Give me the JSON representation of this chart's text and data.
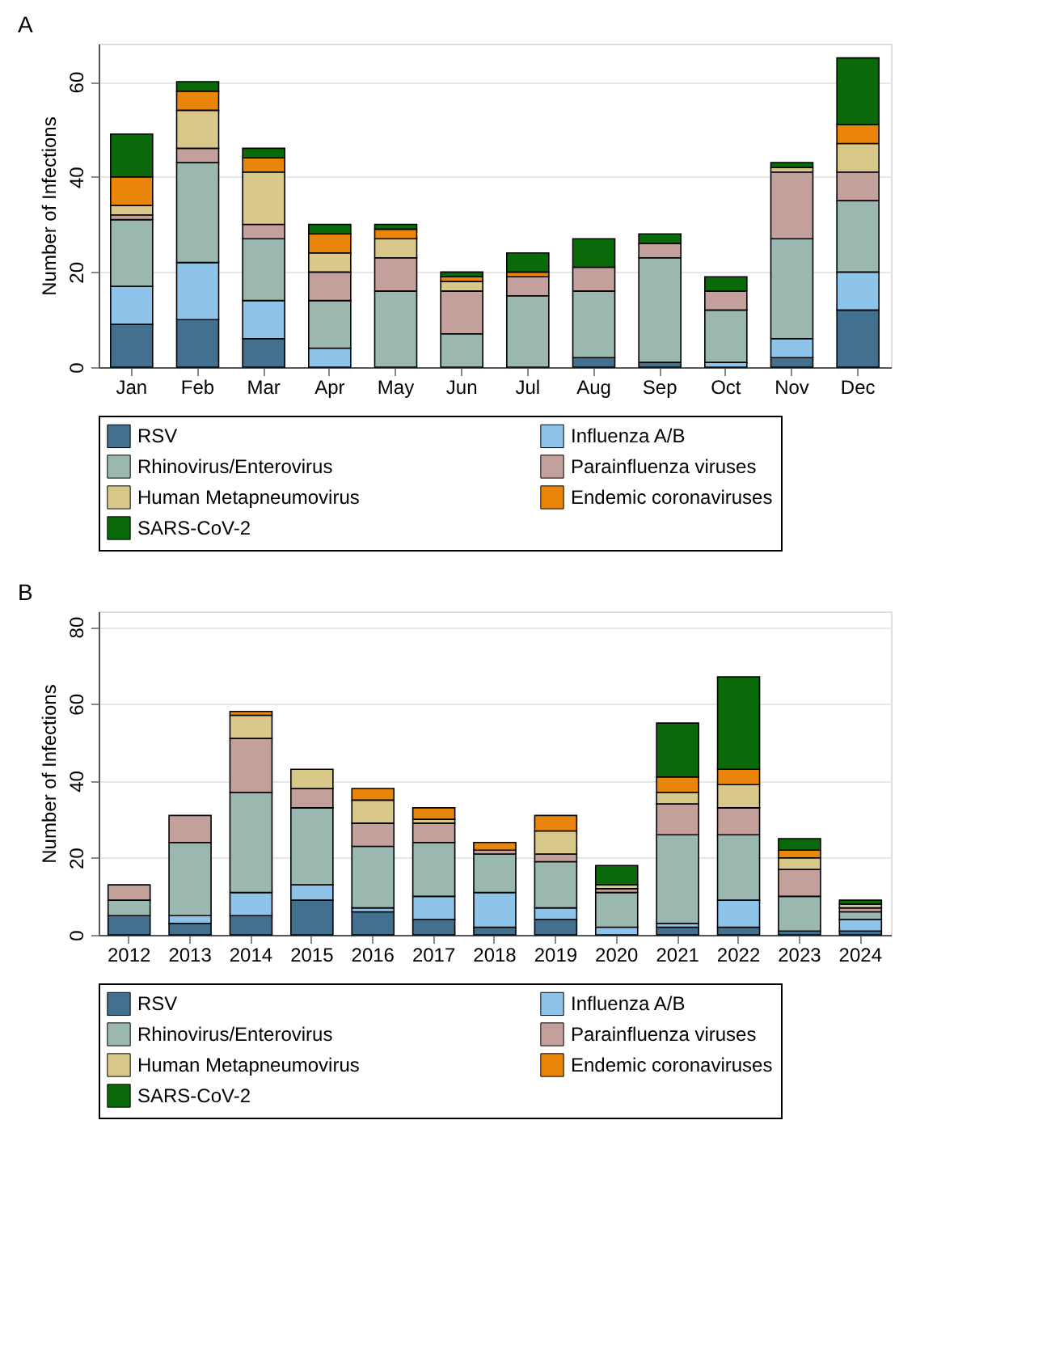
{
  "chart_data": [
    {
      "type": "bar",
      "stacked": true,
      "title": "A",
      "ylabel": "Number of Infections",
      "categories": [
        "Jan",
        "Feb",
        "Mar",
        "Apr",
        "May",
        "Jun",
        "Jul",
        "Aug",
        "Sep",
        "Oct",
        "Nov",
        "Dec"
      ],
      "series": [
        {
          "name": "RSV",
          "color": "#44708f",
          "values": [
            9,
            10,
            6,
            0,
            0,
            0,
            0,
            2,
            1,
            0,
            2,
            12
          ]
        },
        {
          "name": "Influenza A/B",
          "color": "#8ec4ea",
          "values": [
            8,
            12,
            8,
            4,
            0,
            0,
            0,
            0,
            0,
            1,
            4,
            8
          ]
        },
        {
          "name": "Rhinovirus/Enterovirus",
          "color": "#9ab8b0",
          "values": [
            14,
            21,
            13,
            10,
            16,
            7,
            15,
            14,
            22,
            11,
            21,
            15
          ]
        },
        {
          "name": "Parainfluenza viruses",
          "color": "#c4a09c",
          "values": [
            1,
            3,
            3,
            6,
            7,
            9,
            4,
            5,
            3,
            4,
            14,
            6
          ]
        },
        {
          "name": "Human Metapneumovirus",
          "color": "#d8c98a",
          "values": [
            2,
            8,
            11,
            4,
            4,
            2,
            0,
            0,
            0,
            0,
            1,
            6
          ]
        },
        {
          "name": "Endemic coronaviruses",
          "color": "#e8850a",
          "values": [
            6,
            4,
            3,
            4,
            2,
            1,
            1,
            0,
            0,
            0,
            0,
            4
          ]
        },
        {
          "name": "SARS-CoV-2",
          "color": "#0a6a0a",
          "values": [
            9,
            2,
            2,
            2,
            1,
            1,
            4,
            6,
            2,
            3,
            1,
            14
          ]
        }
      ],
      "ylim": [
        0,
        68
      ],
      "yticks": [
        0,
        20,
        40,
        60
      ],
      "grid": "y",
      "legend": "bottom"
    },
    {
      "type": "bar",
      "stacked": true,
      "title": "B",
      "ylabel": "Number of Infections",
      "categories": [
        "2012",
        "2013",
        "2014",
        "2015",
        "2016",
        "2017",
        "2018",
        "2019",
        "2020",
        "2021",
        "2022",
        "2023",
        "2024"
      ],
      "series": [
        {
          "name": "RSV",
          "color": "#44708f",
          "values": [
            5,
            3,
            5,
            9,
            6,
            4,
            2,
            4,
            0,
            2,
            2,
            1,
            1
          ]
        },
        {
          "name": "Influenza A/B",
          "color": "#8ec4ea",
          "values": [
            0,
            2,
            6,
            4,
            1,
            6,
            9,
            3,
            2,
            1,
            7,
            0,
            3
          ]
        },
        {
          "name": "Rhinovirus/Enterovirus",
          "color": "#9ab8b0",
          "values": [
            4,
            19,
            26,
            20,
            16,
            14,
            10,
            12,
            9,
            23,
            17,
            9,
            2
          ]
        },
        {
          "name": "Parainfluenza viruses",
          "color": "#c4a09c",
          "values": [
            4,
            7,
            14,
            5,
            6,
            5,
            1,
            2,
            1,
            8,
            7,
            7,
            1
          ]
        },
        {
          "name": "Human Metapneumovirus",
          "color": "#d8c98a",
          "values": [
            0,
            0,
            6,
            5,
            6,
            1,
            0,
            6,
            1,
            3,
            6,
            3,
            1
          ]
        },
        {
          "name": "Endemic coronaviruses",
          "color": "#e8850a",
          "values": [
            0,
            0,
            1,
            0,
            3,
            3,
            2,
            4,
            0,
            4,
            4,
            2,
            0
          ]
        },
        {
          "name": "SARS-CoV-2",
          "color": "#0a6a0a",
          "values": [
            0,
            0,
            0,
            0,
            0,
            0,
            0,
            0,
            5,
            14,
            24,
            3,
            1
          ]
        }
      ],
      "ylim": [
        0,
        84
      ],
      "yticks": [
        0,
        20,
        40,
        60,
        80
      ],
      "grid": "y",
      "legend": "bottom"
    }
  ]
}
